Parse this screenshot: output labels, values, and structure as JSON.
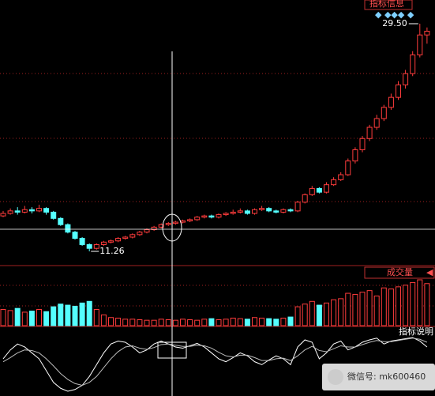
{
  "chart_data": {
    "type": "candlestick",
    "info_title": "指标信息",
    "volume_title": "成交量",
    "indicator_title": "指标说明",
    "watermark": "微信号: mk600460",
    "high_label": "29.50",
    "low_label": "11.26",
    "up_color": "#ff3c3c",
    "down_color": "#54ffff",
    "candles": [
      [
        14.1,
        14.5,
        14.0,
        14.3
      ],
      [
        14.3,
        14.7,
        14.2,
        14.5
      ],
      [
        14.5,
        14.8,
        14.2,
        14.4
      ],
      [
        14.4,
        14.9,
        14.3,
        14.6
      ],
      [
        14.6,
        14.8,
        14.3,
        14.5
      ],
      [
        14.5,
        15.0,
        14.4,
        14.7
      ],
      [
        14.7,
        14.8,
        14.2,
        14.4
      ],
      [
        14.4,
        14.5,
        13.8,
        13.9
      ],
      [
        13.9,
        14.0,
        13.3,
        13.4
      ],
      [
        13.4,
        13.5,
        12.7,
        12.8
      ],
      [
        12.8,
        12.9,
        12.2,
        12.3
      ],
      [
        12.3,
        12.4,
        11.7,
        11.8
      ],
      [
        11.8,
        11.9,
        11.26,
        11.5
      ],
      [
        11.5,
        11.9,
        11.4,
        11.8
      ],
      [
        11.8,
        12.1,
        11.7,
        12.0
      ],
      [
        12.0,
        12.2,
        11.9,
        12.1
      ],
      [
        12.1,
        12.4,
        12.0,
        12.3
      ],
      [
        12.3,
        12.5,
        12.2,
        12.4
      ],
      [
        12.4,
        12.7,
        12.3,
        12.6
      ],
      [
        12.6,
        12.9,
        12.5,
        12.8
      ],
      [
        12.8,
        13.1,
        12.7,
        13.0
      ],
      [
        13.0,
        13.3,
        12.9,
        13.2
      ],
      [
        13.2,
        13.5,
        13.1,
        13.4
      ],
      [
        13.4,
        13.6,
        13.3,
        13.5
      ],
      [
        13.5,
        13.7,
        13.4,
        13.6
      ],
      [
        13.6,
        13.8,
        13.5,
        13.7
      ],
      [
        13.7,
        13.9,
        13.6,
        13.8
      ],
      [
        13.8,
        14.1,
        13.7,
        14.0
      ],
      [
        14.0,
        14.2,
        13.9,
        14.1
      ],
      [
        14.1,
        14.2,
        13.9,
        14.0
      ],
      [
        14.0,
        14.3,
        13.9,
        14.2
      ],
      [
        14.2,
        14.4,
        14.1,
        14.3
      ],
      [
        14.3,
        14.6,
        14.2,
        14.4
      ],
      [
        14.4,
        14.7,
        14.3,
        14.5
      ],
      [
        14.5,
        14.6,
        14.2,
        14.3
      ],
      [
        14.3,
        14.7,
        14.2,
        14.6
      ],
      [
        14.6,
        14.9,
        14.5,
        14.7
      ],
      [
        14.7,
        14.8,
        14.4,
        14.5
      ],
      [
        14.5,
        14.6,
        14.3,
        14.4
      ],
      [
        14.4,
        14.7,
        14.3,
        14.6
      ],
      [
        14.6,
        14.7,
        14.4,
        14.5
      ],
      [
        14.5,
        15.3,
        14.4,
        15.2
      ],
      [
        15.2,
        15.9,
        15.1,
        15.8
      ],
      [
        15.8,
        16.5,
        15.7,
        16.3
      ],
      [
        16.3,
        16.4,
        15.9,
        16.0
      ],
      [
        16.0,
        16.8,
        15.9,
        16.6
      ],
      [
        16.6,
        17.2,
        16.5,
        17.0
      ],
      [
        17.0,
        17.6,
        16.9,
        17.4
      ],
      [
        17.4,
        18.7,
        17.3,
        18.5
      ],
      [
        18.5,
        19.6,
        18.3,
        19.4
      ],
      [
        19.4,
        20.5,
        19.2,
        20.3
      ],
      [
        20.3,
        21.4,
        20.1,
        21.2
      ],
      [
        21.2,
        22.2,
        21.0,
        21.9
      ],
      [
        21.9,
        23.0,
        21.7,
        22.8
      ],
      [
        22.8,
        23.9,
        22.6,
        23.6
      ],
      [
        23.6,
        24.9,
        23.4,
        24.6
      ],
      [
        24.6,
        25.8,
        24.3,
        25.5
      ],
      [
        25.5,
        27.3,
        25.3,
        27.0
      ],
      [
        27.0,
        29.5,
        26.8,
        28.6
      ],
      [
        28.6,
        29.2,
        27.9,
        28.9
      ]
    ],
    "volume": [
      30,
      28,
      32,
      25,
      27,
      30,
      26,
      35,
      40,
      38,
      36,
      42,
      45,
      30,
      20,
      15,
      14,
      12,
      12,
      11,
      10,
      10,
      12,
      11,
      10,
      12,
      11,
      10,
      12,
      13,
      11,
      12,
      14,
      13,
      12,
      15,
      14,
      13,
      12,
      14,
      16,
      35,
      40,
      45,
      38,
      42,
      48,
      50,
      60,
      58,
      62,
      65,
      55,
      70,
      68,
      72,
      75,
      80,
      85,
      78
    ],
    "k": [
      60,
      75,
      85,
      80,
      70,
      60,
      40,
      20,
      10,
      5,
      8,
      15,
      30,
      50,
      70,
      85,
      90,
      88,
      80,
      70,
      75,
      85,
      90,
      85,
      80,
      78,
      82,
      86,
      80,
      70,
      60,
      55,
      62,
      70,
      65,
      55,
      50,
      58,
      65,
      60,
      50,
      80,
      92,
      88,
      60,
      70,
      85,
      90,
      75,
      80,
      88,
      92,
      95,
      85,
      90,
      92,
      94,
      96,
      90,
      80
    ],
    "d": [
      55,
      62,
      70,
      75,
      74,
      70,
      60,
      48,
      35,
      25,
      18,
      15,
      20,
      30,
      45,
      60,
      72,
      80,
      82,
      78,
      76,
      79,
      84,
      85,
      83,
      81,
      81,
      83,
      82,
      78,
      71,
      65,
      63,
      66,
      66,
      62,
      57,
      57,
      60,
      61,
      57,
      65,
      75,
      81,
      74,
      72,
      77,
      82,
      80,
      80,
      84,
      88,
      91,
      89,
      89,
      91,
      93,
      95,
      93,
      88
    ]
  }
}
